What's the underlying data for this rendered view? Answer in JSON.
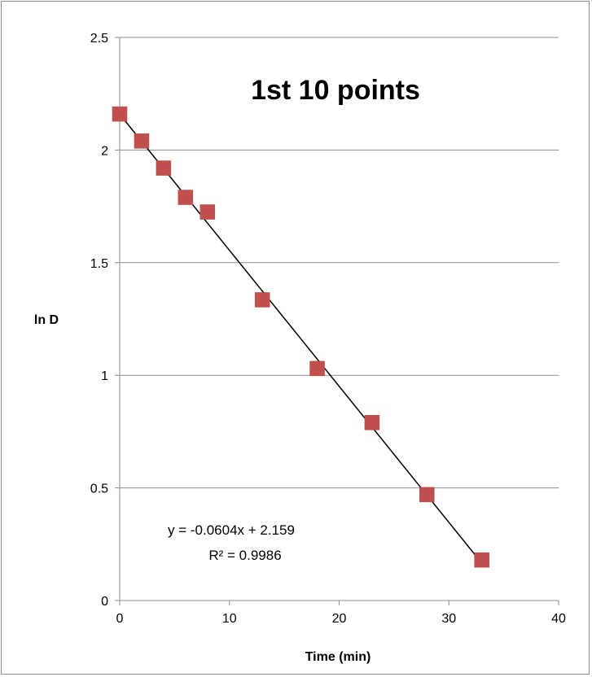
{
  "chart_data": {
    "type": "scatter",
    "title": "1st 10 points",
    "xlabel": "Time (min)",
    "ylabel": "ln D",
    "xlim": [
      0,
      40
    ],
    "ylim": [
      0,
      2.5
    ],
    "xticks": [
      "0",
      "10",
      "20",
      "30",
      "40"
    ],
    "yticks": [
      "0",
      "0.5",
      "1",
      "1.5",
      "2",
      "2.5"
    ],
    "grid": "horizontal",
    "series": [
      {
        "x": [
          0,
          2,
          4,
          6,
          8,
          13,
          18,
          23,
          28,
          33
        ],
        "y": [
          2.16,
          2.04,
          1.92,
          1.79,
          1.725,
          1.335,
          1.03,
          0.79,
          0.47,
          0.18
        ],
        "color": "#c0504d"
      }
    ],
    "trendline": {
      "slope": -0.0604,
      "intercept": 2.159,
      "x_range": [
        0,
        33
      ],
      "color": "#000000",
      "equation": "y = -0.0604x + 2.159",
      "r_squared": "R² = 0.9986"
    }
  }
}
